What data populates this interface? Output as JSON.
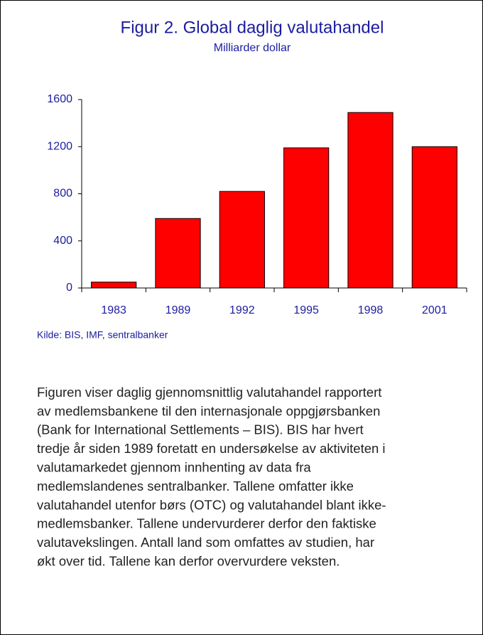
{
  "chart_data": {
    "type": "bar",
    "title": "Figur 2. Global daglig valutahandel",
    "subtitle": "Milliarder dollar",
    "categories": [
      "1983",
      "1989",
      "1992",
      "1995",
      "1998",
      "2001"
    ],
    "values": [
      50,
      590,
      820,
      1190,
      1490,
      1200
    ],
    "color": "#ff0000",
    "ylim": [
      0,
      1600
    ],
    "yticks": [
      0,
      400,
      800,
      1200,
      1600
    ],
    "grid": false,
    "source": "Kilde: BIS, IMF, sentralbanker"
  },
  "text": {
    "lines": [
      "Figuren viser daglig gjennomsnittlig valutahandel rapportert",
      "av medlemsbankene til den internasjonale oppgjørsbanken",
      "(Bank for International Settlements – BIS). BIS har hvert",
      "tredje år siden 1989 foretatt en undersøkelse av aktiviteten i",
      "valutamarkedet gjennom innhenting av data fra",
      "medlemslandenes sentralbanker. Tallene omfatter ikke",
      "valutahandel utenfor børs (OTC) og  valutahandel blant ikke-",
      "medlemsbanker. Tallene undervurderer derfor den faktiske",
      "valutavekslingen. Antall land som omfattes av studien, har",
      "økt over tid. Tallene kan derfor overvurdere veksten."
    ]
  }
}
